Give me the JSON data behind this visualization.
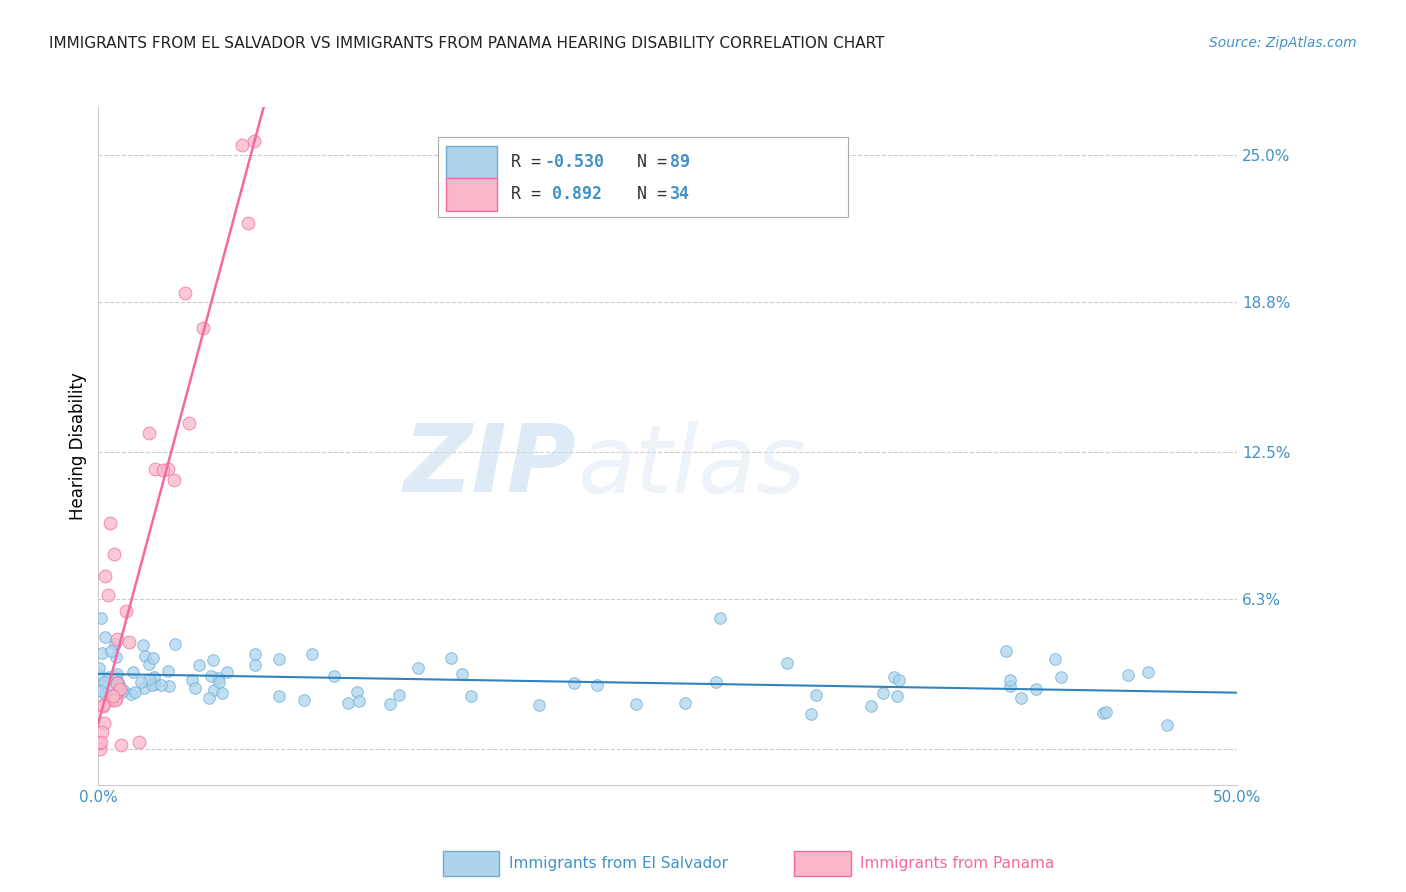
{
  "title": "IMMIGRANTS FROM EL SALVADOR VS IMMIGRANTS FROM PANAMA HEARING DISABILITY CORRELATION CHART",
  "source": "Source: ZipAtlas.com",
  "ylabel": "Hearing Disability",
  "xlim": [
    0.0,
    0.5
  ],
  "ylim": [
    -0.015,
    0.27
  ],
  "ytick_vals": [
    0.0,
    0.063,
    0.125,
    0.188,
    0.25
  ],
  "ytick_labels": [
    "",
    "6.3%",
    "12.5%",
    "18.8%",
    "25.0%"
  ],
  "watermark_zip": "ZIP",
  "watermark_atlas": "atlas",
  "legend_r1": "R = -0.530",
  "legend_n1": "N = 89",
  "legend_r2": "R =  0.892",
  "legend_n2": "N = 34",
  "blue_scatter_face": "#aed4ed",
  "blue_scatter_edge": "#6aadd5",
  "blue_line_color": "#3182bd",
  "pink_scatter_face": "#f9b8c8",
  "pink_scatter_edge": "#f768a1",
  "pink_line_color": "#f768a1",
  "background_color": "#ffffff",
  "grid_color": "#cccccc",
  "text_blue": "#4292c6",
  "title_color": "#222222",
  "source_color": "#4292c6"
}
